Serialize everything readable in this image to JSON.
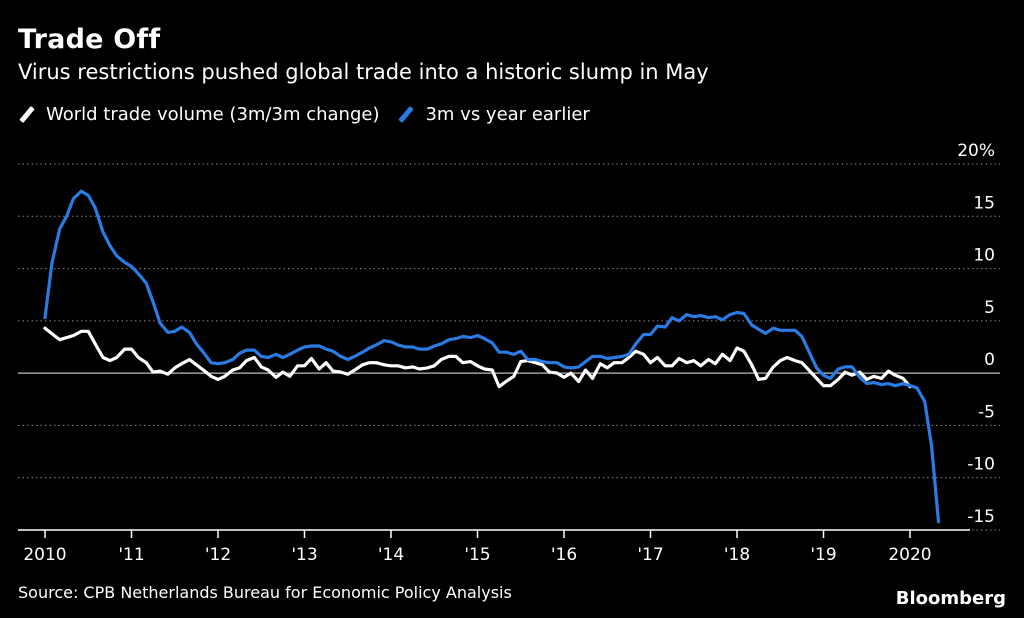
{
  "header": {
    "title": "Trade Off",
    "subtitle": "Virus restrictions pushed global trade into a historic slump in May"
  },
  "footer": {
    "source": "Source: CPB Netherlands Bureau for Economic Policy Analysis",
    "brand": "Bloomberg"
  },
  "colors": {
    "background": "#000000",
    "series_white": "#ffffff",
    "series_blue": "#2a7be4",
    "grid": "#8a8a8a"
  },
  "chart_data": {
    "type": "line",
    "title": "Trade Off",
    "subtitle": "Virus restrictions pushed global trade into a historic slump in May",
    "xlabel": "",
    "ylabel": "",
    "xlim": [
      2010.0,
      2021.0
    ],
    "ylim": [
      -15,
      20
    ],
    "y_unit": "%",
    "grid": true,
    "grid_style": "dotted horizontal",
    "legend_position": "top-left",
    "x_ticks": [
      {
        "value": 2010,
        "label": "2010"
      },
      {
        "value": 2011,
        "label": "'11"
      },
      {
        "value": 2012,
        "label": "'12"
      },
      {
        "value": 2013,
        "label": "'13"
      },
      {
        "value": 2014,
        "label": "'14"
      },
      {
        "value": 2015,
        "label": "'15"
      },
      {
        "value": 2016,
        "label": "'16"
      },
      {
        "value": 2017,
        "label": "'17"
      },
      {
        "value": 2018,
        "label": "'18"
      },
      {
        "value": 2019,
        "label": "'19"
      },
      {
        "value": 2020,
        "label": "2020"
      }
    ],
    "y_ticks": [
      {
        "value": 20,
        "label": "20%"
      },
      {
        "value": 15,
        "label": "15"
      },
      {
        "value": 10,
        "label": "10"
      },
      {
        "value": 5,
        "label": "5"
      },
      {
        "value": 0,
        "label": "0"
      },
      {
        "value": -5,
        "label": "-5"
      },
      {
        "value": -10,
        "label": "-10"
      },
      {
        "value": -15,
        "label": "-15"
      }
    ],
    "series": [
      {
        "name": "World trade volume (3m/3m change)",
        "color": "#ffffff",
        "points": [
          [
            2010.0,
            4.3
          ],
          [
            2010.17,
            3.2
          ],
          [
            2010.33,
            3.6
          ],
          [
            2010.42,
            4.0
          ],
          [
            2010.5,
            4.0
          ],
          [
            2010.58,
            2.8
          ],
          [
            2010.67,
            1.5
          ],
          [
            2010.75,
            1.2
          ],
          [
            2010.83,
            1.5
          ],
          [
            2010.92,
            2.3
          ],
          [
            2011.0,
            2.3
          ],
          [
            2011.08,
            1.5
          ],
          [
            2011.17,
            1.0
          ],
          [
            2011.25,
            0.1
          ],
          [
            2011.33,
            0.2
          ],
          [
            2011.42,
            -0.1
          ],
          [
            2011.5,
            0.5
          ],
          [
            2011.58,
            0.9
          ],
          [
            2011.67,
            1.3
          ],
          [
            2011.75,
            0.8
          ],
          [
            2011.83,
            0.3
          ],
          [
            2011.92,
            -0.3
          ],
          [
            2012.0,
            -0.6
          ],
          [
            2012.08,
            -0.3
          ],
          [
            2012.17,
            0.3
          ],
          [
            2012.25,
            0.5
          ],
          [
            2012.33,
            1.2
          ],
          [
            2012.42,
            1.5
          ],
          [
            2012.5,
            0.6
          ],
          [
            2012.58,
            0.3
          ],
          [
            2012.67,
            -0.4
          ],
          [
            2012.75,
            0.1
          ],
          [
            2012.83,
            -0.3
          ],
          [
            2012.92,
            0.7
          ],
          [
            2013.0,
            0.7
          ],
          [
            2013.08,
            1.4
          ],
          [
            2013.17,
            0.4
          ],
          [
            2013.25,
            1.0
          ],
          [
            2013.33,
            0.2
          ],
          [
            2013.42,
            0.1
          ],
          [
            2013.5,
            -0.1
          ],
          [
            2013.58,
            0.3
          ],
          [
            2013.67,
            0.8
          ],
          [
            2013.75,
            1.0
          ],
          [
            2013.83,
            1.0
          ],
          [
            2013.92,
            0.8
          ],
          [
            2014.0,
            0.7
          ],
          [
            2014.08,
            0.7
          ],
          [
            2014.17,
            0.5
          ],
          [
            2014.25,
            0.6
          ],
          [
            2014.33,
            0.4
          ],
          [
            2014.42,
            0.5
          ],
          [
            2014.5,
            0.7
          ],
          [
            2014.58,
            1.3
          ],
          [
            2014.67,
            1.6
          ],
          [
            2014.75,
            1.6
          ],
          [
            2014.83,
            1.0
          ],
          [
            2014.92,
            1.1
          ],
          [
            2015.0,
            0.7
          ],
          [
            2015.08,
            0.4
          ],
          [
            2015.17,
            0.3
          ],
          [
            2015.25,
            -1.3
          ],
          [
            2015.33,
            -0.8
          ],
          [
            2015.42,
            -0.3
          ],
          [
            2015.5,
            1.1
          ],
          [
            2015.58,
            1.2
          ],
          [
            2015.67,
            1.0
          ],
          [
            2015.75,
            0.8
          ],
          [
            2015.83,
            0.1
          ],
          [
            2015.92,
            0.0
          ],
          [
            2016.0,
            -0.4
          ],
          [
            2016.08,
            0.0
          ],
          [
            2016.17,
            -0.8
          ],
          [
            2016.25,
            0.3
          ],
          [
            2016.33,
            -0.5
          ],
          [
            2016.42,
            0.9
          ],
          [
            2016.5,
            0.5
          ],
          [
            2016.58,
            1.0
          ],
          [
            2016.67,
            1.0
          ],
          [
            2016.75,
            1.5
          ],
          [
            2016.83,
            2.1
          ],
          [
            2016.92,
            1.8
          ],
          [
            2017.0,
            1.0
          ],
          [
            2017.08,
            1.5
          ],
          [
            2017.17,
            0.7
          ],
          [
            2017.25,
            0.7
          ],
          [
            2017.33,
            1.4
          ],
          [
            2017.42,
            1.0
          ],
          [
            2017.5,
            1.2
          ],
          [
            2017.58,
            0.7
          ],
          [
            2017.67,
            1.3
          ],
          [
            2017.75,
            0.9
          ],
          [
            2017.83,
            1.8
          ],
          [
            2017.92,
            1.2
          ],
          [
            2018.0,
            2.4
          ],
          [
            2018.08,
            2.1
          ],
          [
            2018.17,
            0.8
          ],
          [
            2018.25,
            -0.6
          ],
          [
            2018.33,
            -0.5
          ],
          [
            2018.42,
            0.6
          ],
          [
            2018.5,
            1.2
          ],
          [
            2018.58,
            1.5
          ],
          [
            2018.67,
            1.2
          ],
          [
            2018.75,
            1.0
          ],
          [
            2018.83,
            0.3
          ],
          [
            2018.92,
            -0.5
          ],
          [
            2019.0,
            -1.2
          ],
          [
            2019.08,
            -1.2
          ],
          [
            2019.17,
            -0.6
          ],
          [
            2019.25,
            0.1
          ],
          [
            2019.33,
            -0.2
          ],
          [
            2019.42,
            0.1
          ],
          [
            2019.5,
            -0.6
          ],
          [
            2019.58,
            -0.3
          ],
          [
            2019.67,
            -0.5
          ],
          [
            2019.75,
            0.2
          ],
          [
            2019.83,
            -0.2
          ],
          [
            2019.92,
            -0.5
          ],
          [
            2020.0,
            -1.3
          ]
        ]
      },
      {
        "name": "3m vs year earlier",
        "color": "#2a7be4",
        "points": [
          [
            2010.0,
            5.3
          ],
          [
            2010.08,
            10.5
          ],
          [
            2010.17,
            13.8
          ],
          [
            2010.25,
            15.0
          ],
          [
            2010.33,
            16.7
          ],
          [
            2010.42,
            17.4
          ],
          [
            2010.5,
            17.0
          ],
          [
            2010.58,
            15.8
          ],
          [
            2010.67,
            13.5
          ],
          [
            2010.75,
            12.2
          ],
          [
            2010.83,
            11.2
          ],
          [
            2010.92,
            10.6
          ],
          [
            2011.0,
            10.2
          ],
          [
            2011.08,
            9.5
          ],
          [
            2011.17,
            8.6
          ],
          [
            2011.25,
            6.8
          ],
          [
            2011.33,
            4.8
          ],
          [
            2011.42,
            3.9
          ],
          [
            2011.5,
            4.0
          ],
          [
            2011.58,
            4.4
          ],
          [
            2011.67,
            3.9
          ],
          [
            2011.75,
            2.8
          ],
          [
            2011.83,
            2.0
          ],
          [
            2011.92,
            1.0
          ],
          [
            2012.0,
            0.9
          ],
          [
            2012.08,
            1.0
          ],
          [
            2012.17,
            1.3
          ],
          [
            2012.25,
            1.9
          ],
          [
            2012.33,
            2.2
          ],
          [
            2012.42,
            2.2
          ],
          [
            2012.5,
            1.6
          ],
          [
            2012.58,
            1.5
          ],
          [
            2012.67,
            1.8
          ],
          [
            2012.75,
            1.5
          ],
          [
            2012.83,
            1.8
          ],
          [
            2012.92,
            2.2
          ],
          [
            2013.0,
            2.5
          ],
          [
            2013.08,
            2.6
          ],
          [
            2013.17,
            2.6
          ],
          [
            2013.25,
            2.3
          ],
          [
            2013.33,
            2.1
          ],
          [
            2013.42,
            1.6
          ],
          [
            2013.5,
            1.3
          ],
          [
            2013.58,
            1.6
          ],
          [
            2013.67,
            2.0
          ],
          [
            2013.75,
            2.4
          ],
          [
            2013.83,
            2.7
          ],
          [
            2013.92,
            3.1
          ],
          [
            2014.0,
            3.0
          ],
          [
            2014.08,
            2.7
          ],
          [
            2014.17,
            2.5
          ],
          [
            2014.25,
            2.5
          ],
          [
            2014.33,
            2.3
          ],
          [
            2014.42,
            2.3
          ],
          [
            2014.5,
            2.6
          ],
          [
            2014.58,
            2.8
          ],
          [
            2014.67,
            3.2
          ],
          [
            2014.75,
            3.3
          ],
          [
            2014.83,
            3.5
          ],
          [
            2014.92,
            3.4
          ],
          [
            2015.0,
            3.6
          ],
          [
            2015.08,
            3.3
          ],
          [
            2015.17,
            2.9
          ],
          [
            2015.25,
            2.0
          ],
          [
            2015.33,
            2.0
          ],
          [
            2015.42,
            1.8
          ],
          [
            2015.5,
            2.1
          ],
          [
            2015.58,
            1.3
          ],
          [
            2015.67,
            1.3
          ],
          [
            2015.75,
            1.1
          ],
          [
            2015.83,
            1.0
          ],
          [
            2015.92,
            1.0
          ],
          [
            2016.0,
            0.6
          ],
          [
            2016.08,
            0.5
          ],
          [
            2016.17,
            0.6
          ],
          [
            2016.25,
            1.1
          ],
          [
            2016.33,
            1.6
          ],
          [
            2016.42,
            1.6
          ],
          [
            2016.5,
            1.4
          ],
          [
            2016.58,
            1.5
          ],
          [
            2016.67,
            1.6
          ],
          [
            2016.75,
            1.8
          ],
          [
            2016.83,
            2.8
          ],
          [
            2016.92,
            3.7
          ],
          [
            2017.0,
            3.7
          ],
          [
            2017.08,
            4.5
          ],
          [
            2017.17,
            4.4
          ],
          [
            2017.25,
            5.3
          ],
          [
            2017.33,
            5.0
          ],
          [
            2017.42,
            5.6
          ],
          [
            2017.5,
            5.4
          ],
          [
            2017.58,
            5.5
          ],
          [
            2017.67,
            5.3
          ],
          [
            2017.75,
            5.4
          ],
          [
            2017.83,
            5.1
          ],
          [
            2017.92,
            5.6
          ],
          [
            2018.0,
            5.8
          ],
          [
            2018.08,
            5.7
          ],
          [
            2018.17,
            4.6
          ],
          [
            2018.25,
            4.2
          ],
          [
            2018.33,
            3.8
          ],
          [
            2018.42,
            4.3
          ],
          [
            2018.5,
            4.1
          ],
          [
            2018.58,
            4.1
          ],
          [
            2018.67,
            4.1
          ],
          [
            2018.75,
            3.5
          ],
          [
            2018.83,
            2.1
          ],
          [
            2018.92,
            0.5
          ],
          [
            2019.0,
            -0.2
          ],
          [
            2019.08,
            -0.5
          ],
          [
            2019.17,
            0.4
          ],
          [
            2019.25,
            0.6
          ],
          [
            2019.33,
            0.6
          ],
          [
            2019.42,
            -0.4
          ],
          [
            2019.5,
            -1.0
          ],
          [
            2019.58,
            -0.9
          ],
          [
            2019.67,
            -1.1
          ],
          [
            2019.75,
            -1.0
          ],
          [
            2019.83,
            -1.2
          ],
          [
            2019.92,
            -1.0
          ],
          [
            2020.0,
            -1.2
          ],
          [
            2020.08,
            -1.4
          ],
          [
            2020.17,
            -2.7
          ],
          [
            2020.25,
            -7.0
          ],
          [
            2020.33,
            -14.2
          ]
        ]
      }
    ]
  }
}
